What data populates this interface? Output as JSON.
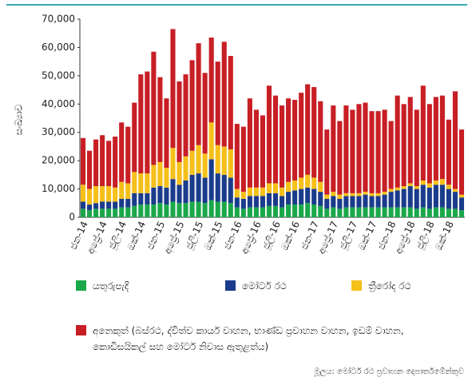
{
  "chart_data": {
    "type": "stacked_bar",
    "y_label": "සංඛ්‍යාව",
    "source": "මූලය: මෝටර් රථ ප්‍රවාහන දෙපාර්තමේන්තුව",
    "categories": [
      "ජන-14",
      null,
      null,
      "අප්‍රේ-14",
      null,
      null,
      "ජූලි-14",
      null,
      null,
      "ඔක්-14",
      null,
      null,
      "ජන-15",
      null,
      null,
      "අප්‍රේ-15",
      null,
      null,
      "ජූලි-15",
      null,
      null,
      "ඔක්-15",
      null,
      null,
      "ජන-16",
      null,
      null,
      "අප්‍රේ-16",
      null,
      null,
      "ජූලි-16",
      null,
      null,
      "ඔක්-16",
      null,
      null,
      "ජන-17",
      null,
      null,
      "අප්‍රේ-17",
      null,
      null,
      "ජූලි-17",
      null,
      null,
      "ඔක්-17",
      null,
      null,
      "ජන-18",
      null,
      null,
      "අප්‍රේ-18",
      null,
      null,
      "ජූලි-18",
      null,
      null,
      "ඔක්-18",
      null,
      null
    ],
    "series": [
      {
        "name": "යතුරුපැදි",
        "color": "#1aa84a",
        "values": [
          3000,
          2500,
          3000,
          3000,
          3000,
          3000,
          3500,
          3500,
          4000,
          4500,
          4500,
          4500,
          5000,
          4500,
          5500,
          5000,
          5000,
          5500,
          5500,
          5000,
          6000,
          5500,
          5500,
          5000,
          3500,
          3000,
          3500,
          3500,
          3500,
          4000,
          4000,
          3500,
          4500,
          4500,
          4500,
          5000,
          4500,
          4000,
          3000,
          3500,
          3000,
          3500,
          3500,
          3500,
          3500,
          3500,
          3500,
          3500,
          3500,
          3500,
          3500,
          3500,
          3000,
          3500,
          3000,
          3500,
          3500,
          3000,
          3000,
          2500
        ]
      },
      {
        "name": "මෝටර් රථ",
        "color": "#1b3c8c",
        "values": [
          2500,
          2000,
          2000,
          2500,
          2500,
          2500,
          3000,
          3000,
          4500,
          4000,
          4000,
          6000,
          6000,
          6000,
          8000,
          6500,
          8000,
          9500,
          10000,
          9000,
          14500,
          10000,
          9500,
          9000,
          3500,
          3500,
          4000,
          4000,
          4000,
          4500,
          4500,
          4000,
          4500,
          5000,
          5500,
          5500,
          5500,
          5000,
          3500,
          4000,
          3500,
          4000,
          4000,
          4000,
          4500,
          4000,
          4000,
          4500,
          5500,
          6000,
          6500,
          7500,
          7000,
          8000,
          7500,
          8000,
          8000,
          7000,
          6000,
          4500
        ]
      },
      {
        "name": "ත්‍රීරෝද රථ",
        "color": "#f5c01a",
        "values": [
          6000,
          5500,
          6000,
          5500,
          5500,
          5000,
          6000,
          5500,
          7500,
          7000,
          7000,
          8000,
          8500,
          7000,
          11000,
          8000,
          8500,
          8500,
          10000,
          8500,
          13000,
          10000,
          10000,
          10000,
          3000,
          2500,
          3000,
          3000,
          3000,
          3500,
          3500,
          3000,
          3500,
          3500,
          4000,
          4500,
          4000,
          3500,
          1500,
          1500,
          1500,
          1000,
          1000,
          1000,
          1000,
          1000,
          1000,
          1000,
          1000,
          1000,
          1000,
          1000,
          1000,
          1500,
          1500,
          1500,
          2000,
          1500,
          1000,
          1000
        ]
      },
      {
        "name": "අනෙකුත් (බස්රථ, ද්විත්ව කාර්ය වාහන, භාණ්ඩ ප්‍රවාහන වාහන, ඉඩම් වාහන, කොඩිසයිකල් සහ මෝටර් නිවාස ඇතුළත්ය)",
        "color": "#c81e25",
        "values": [
          16500,
          13500,
          16500,
          18000,
          16000,
          18000,
          21000,
          20000,
          24500,
          35000,
          36000,
          40000,
          30000,
          24500,
          42000,
          28500,
          29000,
          32000,
          36000,
          28500,
          30000,
          29500,
          37000,
          33000,
          23000,
          23000,
          31500,
          27500,
          25500,
          34500,
          31000,
          29000,
          29500,
          28500,
          30000,
          32000,
          32000,
          28500,
          23000,
          30500,
          26000,
          31000,
          29500,
          31500,
          31500,
          29000,
          29000,
          29000,
          24000,
          32500,
          29000,
          30500,
          27000,
          33500,
          28000,
          29500,
          29500,
          23000,
          34500,
          23000
        ]
      }
    ],
    "ylim": [
      0,
      70000
    ],
    "yticks": [
      0,
      {
        "value": 10000,
        "label": "10,000"
      },
      {
        "value": 20000,
        "label": "20,000"
      },
      {
        "value": 30000,
        "label": "30,000"
      },
      {
        "value": 40000,
        "label": "40,000"
      },
      {
        "value": 50000,
        "label": "50,000"
      },
      {
        "value": 60000,
        "label": "60,000"
      },
      {
        "value": 70000,
        "label": "70,000"
      }
    ],
    "grid": false
  }
}
